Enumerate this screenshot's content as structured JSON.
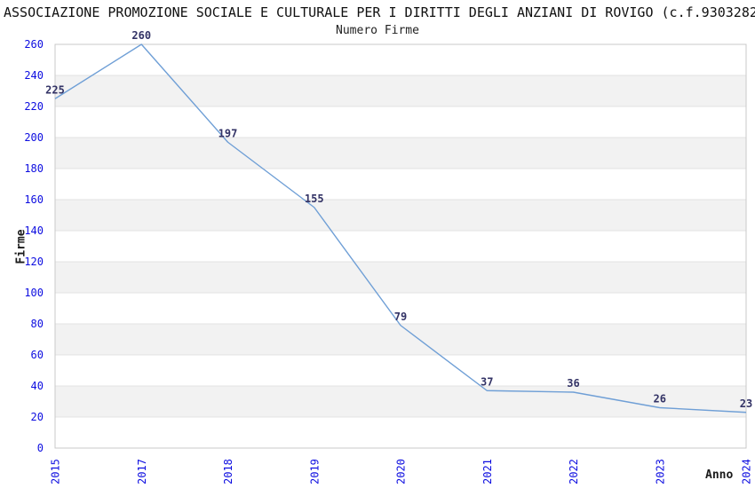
{
  "chart_data": {
    "type": "line",
    "title": "ASSOCIAZIONE PROMOZIONE SOCIALE E CULTURALE PER I DIRITTI DEGLI ANZIANI DI ROVIGO (c.f.9303282",
    "subtitle": "Numero Firme",
    "xlabel": "Anno",
    "ylabel": "Firme",
    "categories": [
      "2015",
      "2017",
      "2018",
      "2019",
      "2020",
      "2021",
      "2022",
      "2023",
      "2024"
    ],
    "values": [
      225,
      260,
      197,
      155,
      79,
      37,
      36,
      26,
      23
    ],
    "ylim": [
      0,
      260
    ],
    "ytick_step": 20,
    "grid": "horizontal-bands-alternating",
    "legend": "none",
    "x_tick_rotation": -90,
    "colors": {
      "line": "#6f9fd6",
      "tick_labels": "#0d0de0",
      "value_labels": "#333366",
      "band_fill": "#f2f2f2",
      "gridline": "#e3e3e3",
      "plot_border": "#c9c9c9",
      "title_text": "#111111"
    }
  }
}
